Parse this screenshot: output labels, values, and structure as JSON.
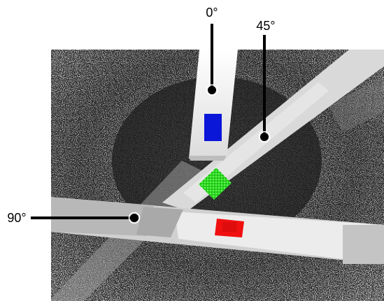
{
  "figure": {
    "labels": {
      "angle_0": "0°",
      "angle_45": "45°",
      "angle_90": "90°"
    },
    "markers": [
      {
        "name": "blue-rectangle-marker",
        "color": "#0a16d8"
      },
      {
        "name": "green-diamond-marker",
        "color": "#22e01a"
      },
      {
        "name": "red-rectangle-marker",
        "color": "#f01010"
      }
    ],
    "colors": {
      "background": "#ffffff",
      "photo_dark": "#3b3b3b",
      "beam": "#e9e9e9",
      "pointer": "#000000"
    }
  }
}
